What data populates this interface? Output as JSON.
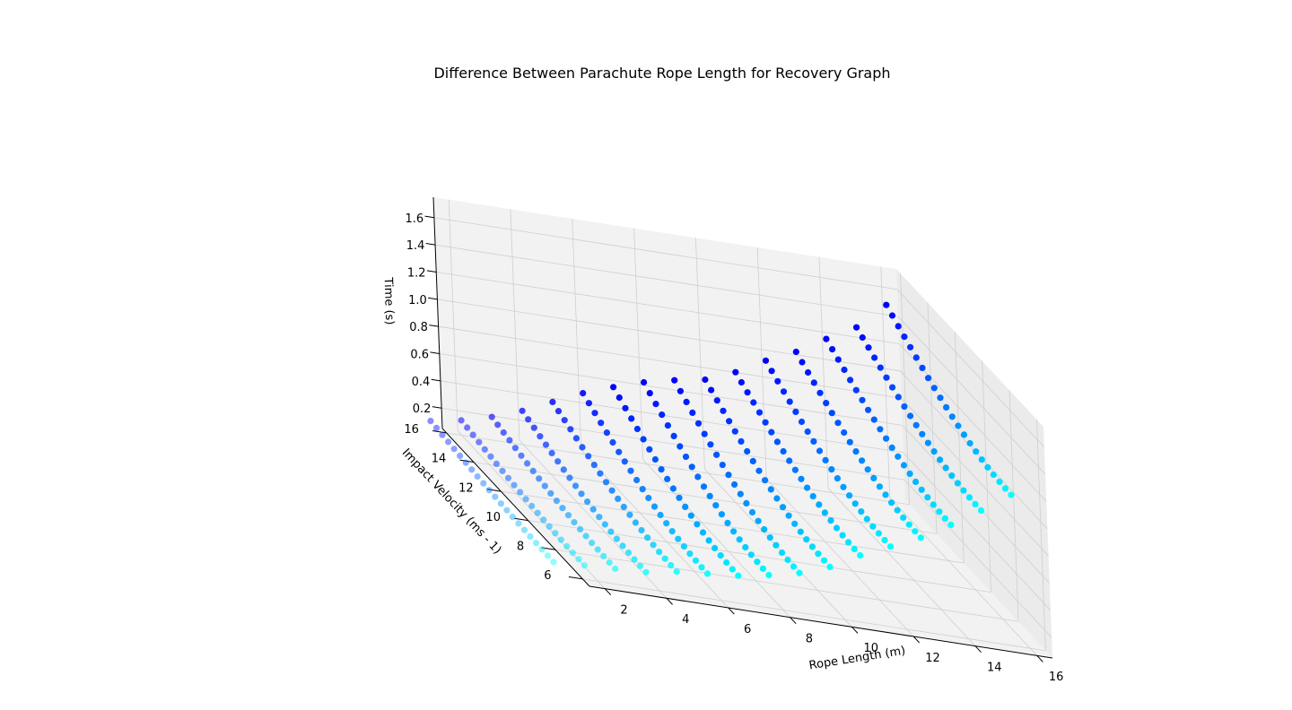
{
  "chart_data": {
    "type": "scatter",
    "title": "Difference Between Parachute Rope Length for Recovery Graph",
    "xlabel": "Rope Length (m)",
    "ylabel": "Impact Velocity (ms - 1)",
    "zlabel": "Time (s)",
    "x_ticks": [
      "2",
      "4",
      "6",
      "8",
      "10",
      "12",
      "14",
      "16"
    ],
    "y_ticks": [
      "6",
      "8",
      "10",
      "12",
      "14",
      "16"
    ],
    "z_ticks": [
      "0.2",
      "0.4",
      "0.6",
      "0.8",
      "1.0",
      "1.2",
      "1.4",
      "1.6"
    ],
    "xlim": [
      1.5,
      16.5
    ],
    "ylim": [
      5.5,
      16.3
    ],
    "zlim": [
      0.05,
      1.75
    ],
    "grid": true,
    "color_low": "#0000ff",
    "color_high": "#00ffff",
    "series": [
      {
        "rope_length": 1,
        "z_start": 0.12,
        "z_end": 0.05,
        "v_start": 16.0,
        "v_end": 7.0
      },
      {
        "rope_length": 2,
        "z_start": 0.16,
        "z_end": 0.06,
        "v_start": 16.0,
        "v_end": 7.0
      },
      {
        "rope_length": 3,
        "z_start": 0.22,
        "z_end": 0.07,
        "v_start": 16.0,
        "v_end": 7.0
      },
      {
        "rope_length": 4,
        "z_start": 0.3,
        "z_end": 0.08,
        "v_start": 16.0,
        "v_end": 7.0
      },
      {
        "rope_length": 5,
        "z_start": 0.4,
        "z_end": 0.12,
        "v_start": 16.0,
        "v_end": 7.0
      },
      {
        "rope_length": 6,
        "z_start": 0.5,
        "z_end": 0.14,
        "v_start": 16.0,
        "v_end": 7.0
      },
      {
        "rope_length": 7,
        "z_start": 0.58,
        "z_end": 0.16,
        "v_start": 16.0,
        "v_end": 7.0
      },
      {
        "rope_length": 8,
        "z_start": 0.65,
        "z_end": 0.2,
        "v_start": 16.0,
        "v_end": 7.0
      },
      {
        "rope_length": 9,
        "z_start": 0.7,
        "z_end": 0.25,
        "v_start": 16.0,
        "v_end": 7.0
      },
      {
        "rope_length": 10,
        "z_start": 0.74,
        "z_end": 0.33,
        "v_start": 16.0,
        "v_end": 7.0
      },
      {
        "rope_length": 11,
        "z_start": 0.83,
        "z_end": 0.45,
        "v_start": 16.0,
        "v_end": 7.0
      },
      {
        "rope_length": 12,
        "z_start": 0.95,
        "z_end": 0.55,
        "v_start": 16.0,
        "v_end": 7.0
      },
      {
        "rope_length": 13,
        "z_start": 1.05,
        "z_end": 0.65,
        "v_start": 16.0,
        "v_end": 7.0
      },
      {
        "rope_length": 14,
        "z_start": 1.18,
        "z_end": 0.78,
        "v_start": 16.0,
        "v_end": 7.0
      },
      {
        "rope_length": 15,
        "z_start": 1.3,
        "z_end": 0.92,
        "v_start": 16.0,
        "v_end": 7.0
      },
      {
        "rope_length": 16,
        "z_start": 1.5,
        "z_end": 1.07,
        "v_start": 16.0,
        "v_end": 7.0
      }
    ]
  }
}
